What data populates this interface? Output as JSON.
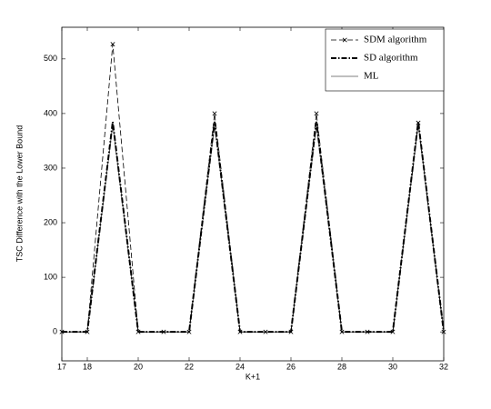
{
  "chart_data": {
    "type": "line",
    "x_label": "K+1",
    "y_label": "TSC Difference with the Lower Bound",
    "x": [
      17,
      18,
      19,
      20,
      21,
      22,
      23,
      24,
      25,
      26,
      27,
      28,
      29,
      30,
      31,
      32
    ],
    "series": [
      {
        "name": "SDM algorithm",
        "color": "#000000",
        "linestyle": "dashed",
        "marker": "x",
        "values": [
          0,
          0,
          527,
          0,
          0,
          0,
          400,
          0,
          0,
          0,
          400,
          0,
          0,
          0,
          383,
          0
        ]
      },
      {
        "name": "SD algorithm",
        "color": "#000000",
        "linestyle": "dashdot",
        "values": [
          0,
          0,
          385,
          0,
          0,
          0,
          385,
          0,
          0,
          0,
          385,
          0,
          0,
          0,
          385,
          0
        ]
      },
      {
        "name": "ML",
        "color": "#000000",
        "linestyle": "solid",
        "values": [
          0,
          0,
          380,
          0,
          0,
          0,
          380,
          0,
          0,
          0,
          380,
          0,
          0,
          0,
          380,
          0
        ]
      }
    ],
    "xlim": [
      17,
      32
    ],
    "xticks": [
      17,
      18,
      20,
      22,
      24,
      26,
      28,
      30,
      32
    ],
    "ylim": [
      -53,
      558
    ],
    "yticks": [
      0,
      100,
      200,
      300,
      400,
      500
    ],
    "legend": "upper right"
  }
}
